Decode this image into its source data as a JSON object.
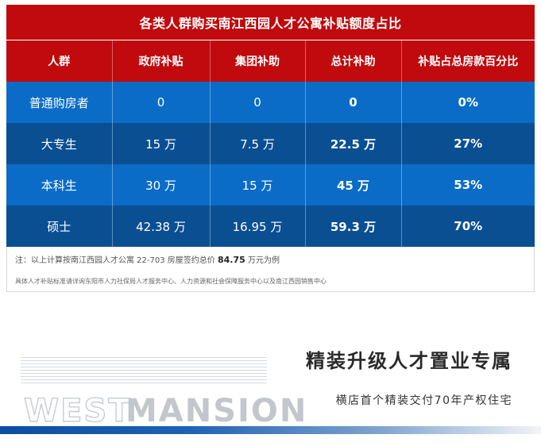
{
  "table": {
    "title": "各类人群购买南江西园人才公寓补贴额度占比",
    "headers": [
      "人群",
      "政府补贴",
      "集团补助",
      "总计补助",
      "补贴占总房款百分比"
    ],
    "rows": [
      {
        "group": "普通购房者",
        "gov": "0",
        "corp": "0",
        "total": "0",
        "percent": "0%"
      },
      {
        "group": "大专生",
        "gov": "15 万",
        "corp": "7.5 万",
        "total": "22.5 万",
        "percent": "27%"
      },
      {
        "group": "本科生",
        "gov": "30 万",
        "corp": "15 万",
        "total": "45 万",
        "percent": "53%"
      },
      {
        "group": "硕士",
        "gov": "42.38 万",
        "corp": "16.95 万",
        "total": "59.3 万",
        "percent": "70%"
      }
    ],
    "note_prefix": "注：以上计算按南江西园人才公寓 22-703 房屋签约总价",
    "note_price": "84.75",
    "note_suffix": "万元为例",
    "note2": "具体人才补贴标准请详询东阳市人力社保局人才服务中心、人力资源和社会保障服务中心以及南江西园销售中心"
  },
  "footer": {
    "heading": "精装升级人才置业专属",
    "subheading": "横店首个精装交付70年产权住宅",
    "watermark_west": "WEST",
    "watermark_mansion": "MANSION"
  },
  "colors": {
    "header_red": "#c00a0e",
    "row_light_blue": "#0a6cc6",
    "row_dark_blue": "#0b4f93"
  }
}
